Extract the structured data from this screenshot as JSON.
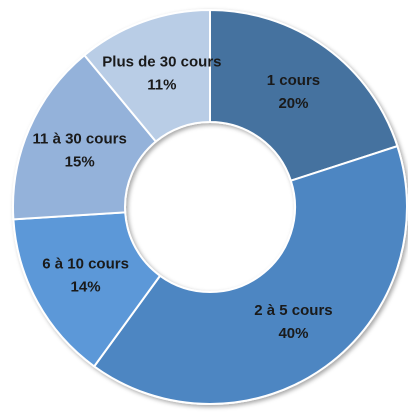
{
  "chart_data": {
    "type": "donut",
    "categories": [
      "1 cours",
      "2 à 5 cours",
      "6 à 10 cours",
      "11 à 30 cours",
      "Plus de 30 cours"
    ],
    "values": [
      20,
      40,
      14,
      15,
      11
    ],
    "value_labels": [
      "20%",
      "40%",
      "14%",
      "15%",
      "11%"
    ],
    "colors": [
      "#44729f",
      "#4e86c2",
      "#5b98d8",
      "#94b2da",
      "#b9cde6"
    ]
  }
}
